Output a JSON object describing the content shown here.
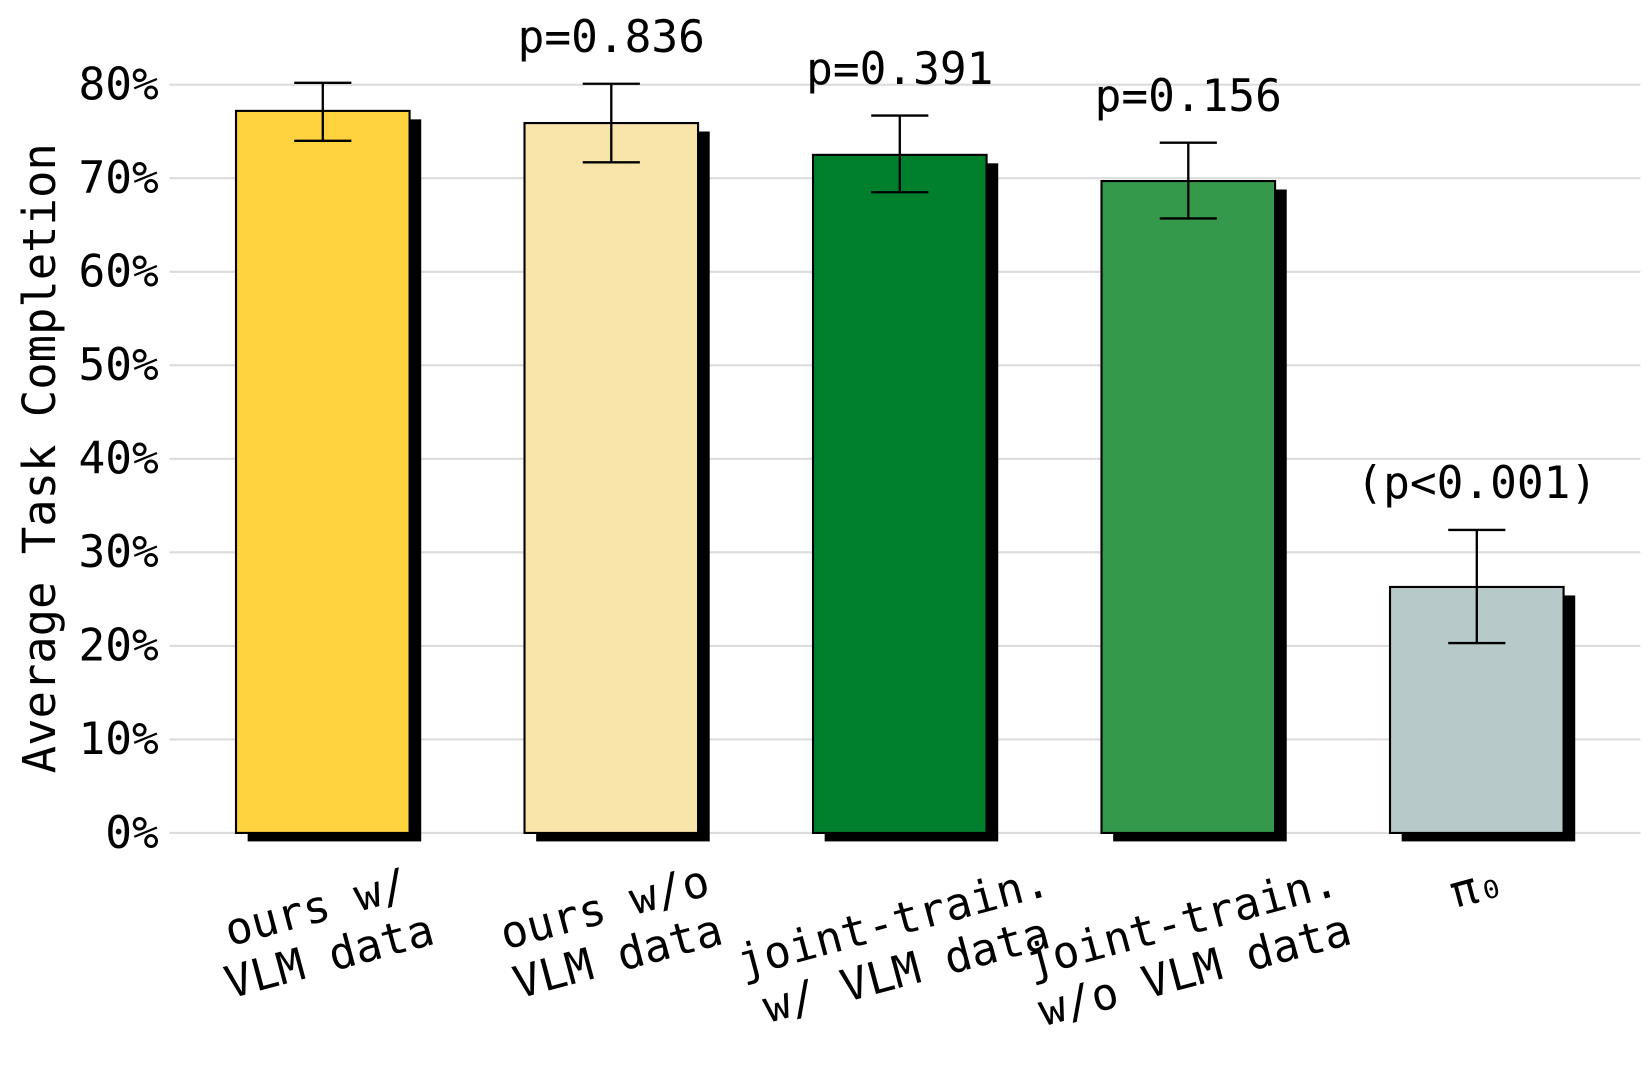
{
  "chart_data": {
    "type": "bar",
    "categories": [
      [
        "ours w/",
        "VLM data"
      ],
      [
        "ours w/o",
        "VLM data"
      ],
      [
        "joint-train.",
        "w/ VLM data"
      ],
      [
        "joint-train.",
        "w/o VLM data"
      ],
      [
        "π₀"
      ]
    ],
    "values": [
      77.2,
      75.9,
      72.5,
      69.7,
      26.3
    ],
    "error_low": [
      74.0,
      71.7,
      68.5,
      65.7,
      20.3
    ],
    "error_high": [
      80.2,
      80.1,
      76.7,
      73.8,
      32.4
    ],
    "p_values": [
      null,
      "p=0.836",
      "p=0.391",
      "p=0.156",
      "(p<0.001)"
    ],
    "colors": [
      "#ffd23f",
      "#f9e4aa",
      "#007f2d",
      "#35994b",
      "#b7c9c9"
    ],
    "ylabel": "Average Task Completion",
    "ylim": [
      0,
      80
    ],
    "yticks": [
      0,
      10,
      20,
      30,
      40,
      50,
      60,
      70,
      80
    ],
    "ytick_labels": [
      "0%",
      "10%",
      "20%",
      "30%",
      "40%",
      "50%",
      "60%",
      "70%",
      "80%"
    ],
    "grid": true,
    "legend": "none"
  }
}
